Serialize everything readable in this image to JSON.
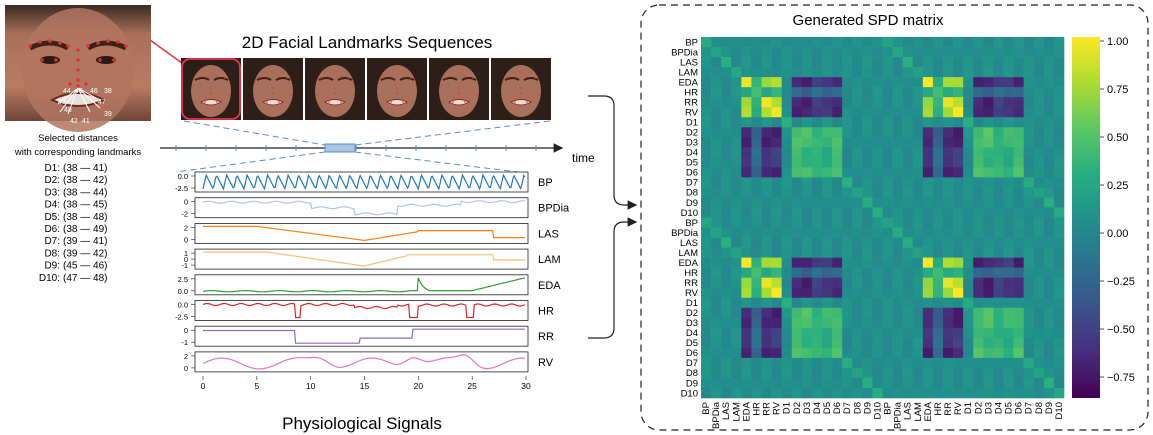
{
  "titles": {
    "landmarks": "2D Facial Landmarks Sequences",
    "physio": "Physiological Signals",
    "spd": "Generated SPD matrix",
    "time": "time"
  },
  "distances": {
    "heading_1": "Selected distances",
    "heading_2": "with corresponding landmarks",
    "items": [
      {
        "name": "D1:",
        "pair": "(38 — 41)"
      },
      {
        "name": "D2:",
        "pair": "(38 — 42)"
      },
      {
        "name": "D3:",
        "pair": "(38 — 44)"
      },
      {
        "name": "D4:",
        "pair": "(38 — 45)"
      },
      {
        "name": "D5:",
        "pair": "(38 — 48)"
      },
      {
        "name": "D6:",
        "pair": "(38 — 49)"
      },
      {
        "name": "D7:",
        "pair": "(39 — 41)"
      },
      {
        "name": "D8:",
        "pair": "(39 — 42)"
      },
      {
        "name": "D9:",
        "pair": "(45 — 46)"
      },
      {
        "name": "D10:",
        "pair": "(47 — 48)"
      }
    ]
  },
  "face_landmark_numbers": [
    "44",
    "45",
    "46",
    "38",
    "49",
    "47",
    "48",
    "39",
    "42",
    "41"
  ],
  "signals": [
    {
      "name": "BP",
      "color": "#1f77b4",
      "yticks": [
        "0.0",
        "-2.5"
      ]
    },
    {
      "name": "BPDia",
      "color": "#aec7e8",
      "yticks": [
        "0",
        "-2"
      ]
    },
    {
      "name": "LAS",
      "color": "#ff7f0e",
      "yticks": [
        "2",
        "0"
      ]
    },
    {
      "name": "LAM",
      "color": "#ffbb78",
      "yticks": [
        "1",
        "0",
        "-1"
      ]
    },
    {
      "name": "EDA",
      "color": "#2ca02c",
      "yticks": [
        "2.5",
        "0.0"
      ]
    },
    {
      "name": "HR",
      "color": "#d62728",
      "yticks": [
        "0.0",
        "-2.5"
      ]
    },
    {
      "name": "RR",
      "color": "#9467bd",
      "yticks": [
        "0",
        "-1"
      ]
    },
    {
      "name": "RV",
      "color": "#e377c2",
      "yticks": [
        "2",
        "0"
      ]
    }
  ],
  "signal_xticks": [
    "0",
    "5",
    "10",
    "15",
    "20",
    "25",
    "30"
  ],
  "matrix_labels": [
    "BP",
    "BPDia",
    "LAS",
    "LAM",
    "EDA",
    "HR",
    "RR",
    "RV",
    "D1",
    "D2",
    "D3",
    "D4",
    "D5",
    "D6",
    "D7",
    "D8",
    "D9",
    "D10",
    "BP",
    "BPDia",
    "LAS",
    "LAM",
    "EDA",
    "HR",
    "RR",
    "RV",
    "D1",
    "D2",
    "D3",
    "D4",
    "D5",
    "D6",
    "D7",
    "D8",
    "D9",
    "D10"
  ],
  "colorbar_ticks": [
    "1.00",
    "0.75",
    "0.50",
    "0.25",
    "0.00",
    "−0.25",
    "−0.50",
    "−0.75"
  ],
  "colors": {
    "frame_highlight": "#e8344e",
    "dashed": "#5b8dc9",
    "timeline_box": "#a9c4e4"
  }
}
